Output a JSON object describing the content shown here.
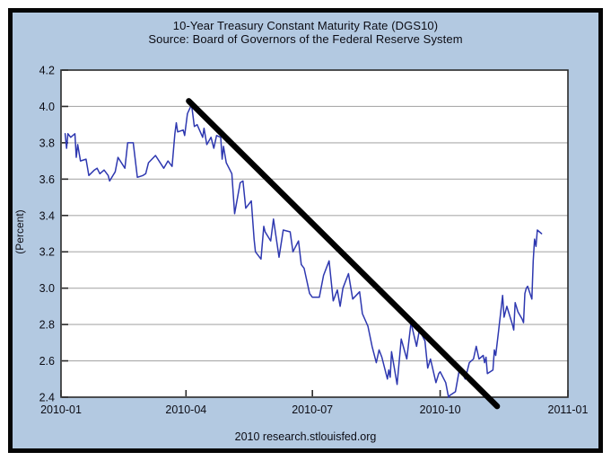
{
  "chart_data": {
    "type": "line",
    "title": "10-Year Treasury Constant Maturity Rate (DGS10)",
    "subtitle": "Source: Board of Governors of the Federal Reserve System",
    "footer": "2010 research.stlouisfed.org",
    "xlabel": "",
    "ylabel": "(Percent)",
    "ylim": [
      2.4,
      4.2
    ],
    "y_ticks": [
      4.2,
      4.0,
      3.8,
      3.6,
      3.4,
      3.2,
      3.0,
      2.8,
      2.6,
      2.4
    ],
    "x_ticks": [
      "2010-01",
      "2010-04",
      "2010-07",
      "2010-10",
      "2011-01"
    ],
    "x_range": [
      "2010-01-01",
      "2011-01-01"
    ],
    "grid": "horizontal",
    "legend": "none",
    "colors": {
      "background": "#b3c9e1",
      "plot_background": "#ffffff",
      "gridline": "#ababab",
      "axis": "#2a2a2a",
      "line": "#2e38b0",
      "trend": "#000000",
      "text": "#0c0c14",
      "outer_border": "#060606"
    },
    "series": [
      {
        "name": "DGS10",
        "color": "#2e38b0",
        "points": [
          [
            "2010-01-04",
            3.85
          ],
          [
            "2010-01-05",
            3.77
          ],
          [
            "2010-01-06",
            3.85
          ],
          [
            "2010-01-08",
            3.83
          ],
          [
            "2010-01-11",
            3.85
          ],
          [
            "2010-01-12",
            3.72
          ],
          [
            "2010-01-13",
            3.79
          ],
          [
            "2010-01-15",
            3.7
          ],
          [
            "2010-01-19",
            3.71
          ],
          [
            "2010-01-21",
            3.62
          ],
          [
            "2010-01-25",
            3.65
          ],
          [
            "2010-01-27",
            3.66
          ],
          [
            "2010-01-29",
            3.63
          ],
          [
            "2010-02-01",
            3.65
          ],
          [
            "2010-02-04",
            3.62
          ],
          [
            "2010-02-05",
            3.59
          ],
          [
            "2010-02-09",
            3.64
          ],
          [
            "2010-02-11",
            3.72
          ],
          [
            "2010-02-16",
            3.66
          ],
          [
            "2010-02-18",
            3.8
          ],
          [
            "2010-02-22",
            3.8
          ],
          [
            "2010-02-25",
            3.61
          ],
          [
            "2010-03-01",
            3.62
          ],
          [
            "2010-03-03",
            3.63
          ],
          [
            "2010-03-05",
            3.69
          ],
          [
            "2010-03-10",
            3.73
          ],
          [
            "2010-03-16",
            3.66
          ],
          [
            "2010-03-19",
            3.7
          ],
          [
            "2010-03-22",
            3.67
          ],
          [
            "2010-03-24",
            3.85
          ],
          [
            "2010-03-25",
            3.91
          ],
          [
            "2010-03-26",
            3.86
          ],
          [
            "2010-03-30",
            3.87
          ],
          [
            "2010-03-31",
            3.84
          ],
          [
            "2010-04-02",
            3.96
          ],
          [
            "2010-04-05",
            4.01
          ],
          [
            "2010-04-07",
            3.89
          ],
          [
            "2010-04-09",
            3.9
          ],
          [
            "2010-04-13",
            3.83
          ],
          [
            "2010-04-14",
            3.88
          ],
          [
            "2010-04-16",
            3.79
          ],
          [
            "2010-04-19",
            3.83
          ],
          [
            "2010-04-21",
            3.77
          ],
          [
            "2010-04-23",
            3.84
          ],
          [
            "2010-04-26",
            3.83
          ],
          [
            "2010-04-27",
            3.71
          ],
          [
            "2010-04-28",
            3.78
          ],
          [
            "2010-04-30",
            3.69
          ],
          [
            "2010-05-04",
            3.63
          ],
          [
            "2010-05-06",
            3.41
          ],
          [
            "2010-05-10",
            3.58
          ],
          [
            "2010-05-12",
            3.59
          ],
          [
            "2010-05-14",
            3.44
          ],
          [
            "2010-05-18",
            3.48
          ],
          [
            "2010-05-20",
            3.27
          ],
          [
            "2010-05-21",
            3.2
          ],
          [
            "2010-05-25",
            3.16
          ],
          [
            "2010-05-27",
            3.34
          ],
          [
            "2010-05-28",
            3.31
          ],
          [
            "2010-06-01",
            3.26
          ],
          [
            "2010-06-03",
            3.38
          ],
          [
            "2010-06-07",
            3.17
          ],
          [
            "2010-06-10",
            3.32
          ],
          [
            "2010-06-15",
            3.31
          ],
          [
            "2010-06-17",
            3.2
          ],
          [
            "2010-06-21",
            3.26
          ],
          [
            "2010-06-23",
            3.13
          ],
          [
            "2010-06-25",
            3.11
          ],
          [
            "2010-06-29",
            2.97
          ],
          [
            "2010-07-01",
            2.95
          ],
          [
            "2010-07-06",
            2.95
          ],
          [
            "2010-07-09",
            3.07
          ],
          [
            "2010-07-13",
            3.15
          ],
          [
            "2010-07-16",
            2.93
          ],
          [
            "2010-07-19",
            2.99
          ],
          [
            "2010-07-21",
            2.9
          ],
          [
            "2010-07-23",
            3.0
          ],
          [
            "2010-07-27",
            3.08
          ],
          [
            "2010-07-30",
            2.94
          ],
          [
            "2010-08-04",
            2.98
          ],
          [
            "2010-08-06",
            2.86
          ],
          [
            "2010-08-10",
            2.79
          ],
          [
            "2010-08-13",
            2.68
          ],
          [
            "2010-08-16",
            2.59
          ],
          [
            "2010-08-18",
            2.66
          ],
          [
            "2010-08-20",
            2.62
          ],
          [
            "2010-08-24",
            2.5
          ],
          [
            "2010-08-25",
            2.55
          ],
          [
            "2010-08-26",
            2.51
          ],
          [
            "2010-08-27",
            2.65
          ],
          [
            "2010-08-31",
            2.47
          ],
          [
            "2010-09-03",
            2.72
          ],
          [
            "2010-09-07",
            2.61
          ],
          [
            "2010-09-10",
            2.81
          ],
          [
            "2010-09-14",
            2.68
          ],
          [
            "2010-09-16",
            2.77
          ],
          [
            "2010-09-20",
            2.71
          ],
          [
            "2010-09-22",
            2.56
          ],
          [
            "2010-09-24",
            2.61
          ],
          [
            "2010-09-28",
            2.48
          ],
          [
            "2010-09-30",
            2.53
          ],
          [
            "2010-10-01",
            2.54
          ],
          [
            "2010-10-05",
            2.48
          ],
          [
            "2010-10-07",
            2.4
          ],
          [
            "2010-10-08",
            2.41
          ],
          [
            "2010-10-12",
            2.43
          ],
          [
            "2010-10-15",
            2.56
          ],
          [
            "2010-10-19",
            2.5
          ],
          [
            "2010-10-22",
            2.59
          ],
          [
            "2010-10-25",
            2.61
          ],
          [
            "2010-10-27",
            2.68
          ],
          [
            "2010-10-29",
            2.61
          ],
          [
            "2010-11-01",
            2.63
          ],
          [
            "2010-11-02",
            2.59
          ],
          [
            "2010-11-03",
            2.62
          ],
          [
            "2010-11-04",
            2.53
          ],
          [
            "2010-11-08",
            2.55
          ],
          [
            "2010-11-09",
            2.66
          ],
          [
            "2010-11-10",
            2.63
          ],
          [
            "2010-11-12",
            2.76
          ],
          [
            "2010-11-15",
            2.96
          ],
          [
            "2010-11-16",
            2.84
          ],
          [
            "2010-11-18",
            2.9
          ],
          [
            "2010-11-22",
            2.8
          ],
          [
            "2010-11-23",
            2.77
          ],
          [
            "2010-11-24",
            2.92
          ],
          [
            "2010-11-26",
            2.87
          ],
          [
            "2010-11-29",
            2.83
          ],
          [
            "2010-11-30",
            2.81
          ],
          [
            "2010-12-01",
            2.97
          ],
          [
            "2010-12-02",
            3.0
          ],
          [
            "2010-12-03",
            3.01
          ],
          [
            "2010-12-06",
            2.94
          ],
          [
            "2010-12-07",
            3.15
          ],
          [
            "2010-12-08",
            3.27
          ],
          [
            "2010-12-09",
            3.23
          ],
          [
            "2010-12-10",
            3.32
          ],
          [
            "2010-12-13",
            3.3
          ]
        ]
      }
    ],
    "trend_line": {
      "name": "downtrend annotation",
      "color": "#000000",
      "stroke_width": 6.5,
      "start": [
        "2010-04-03",
        4.03
      ],
      "end": [
        "2010-11-11",
        2.35
      ]
    }
  }
}
